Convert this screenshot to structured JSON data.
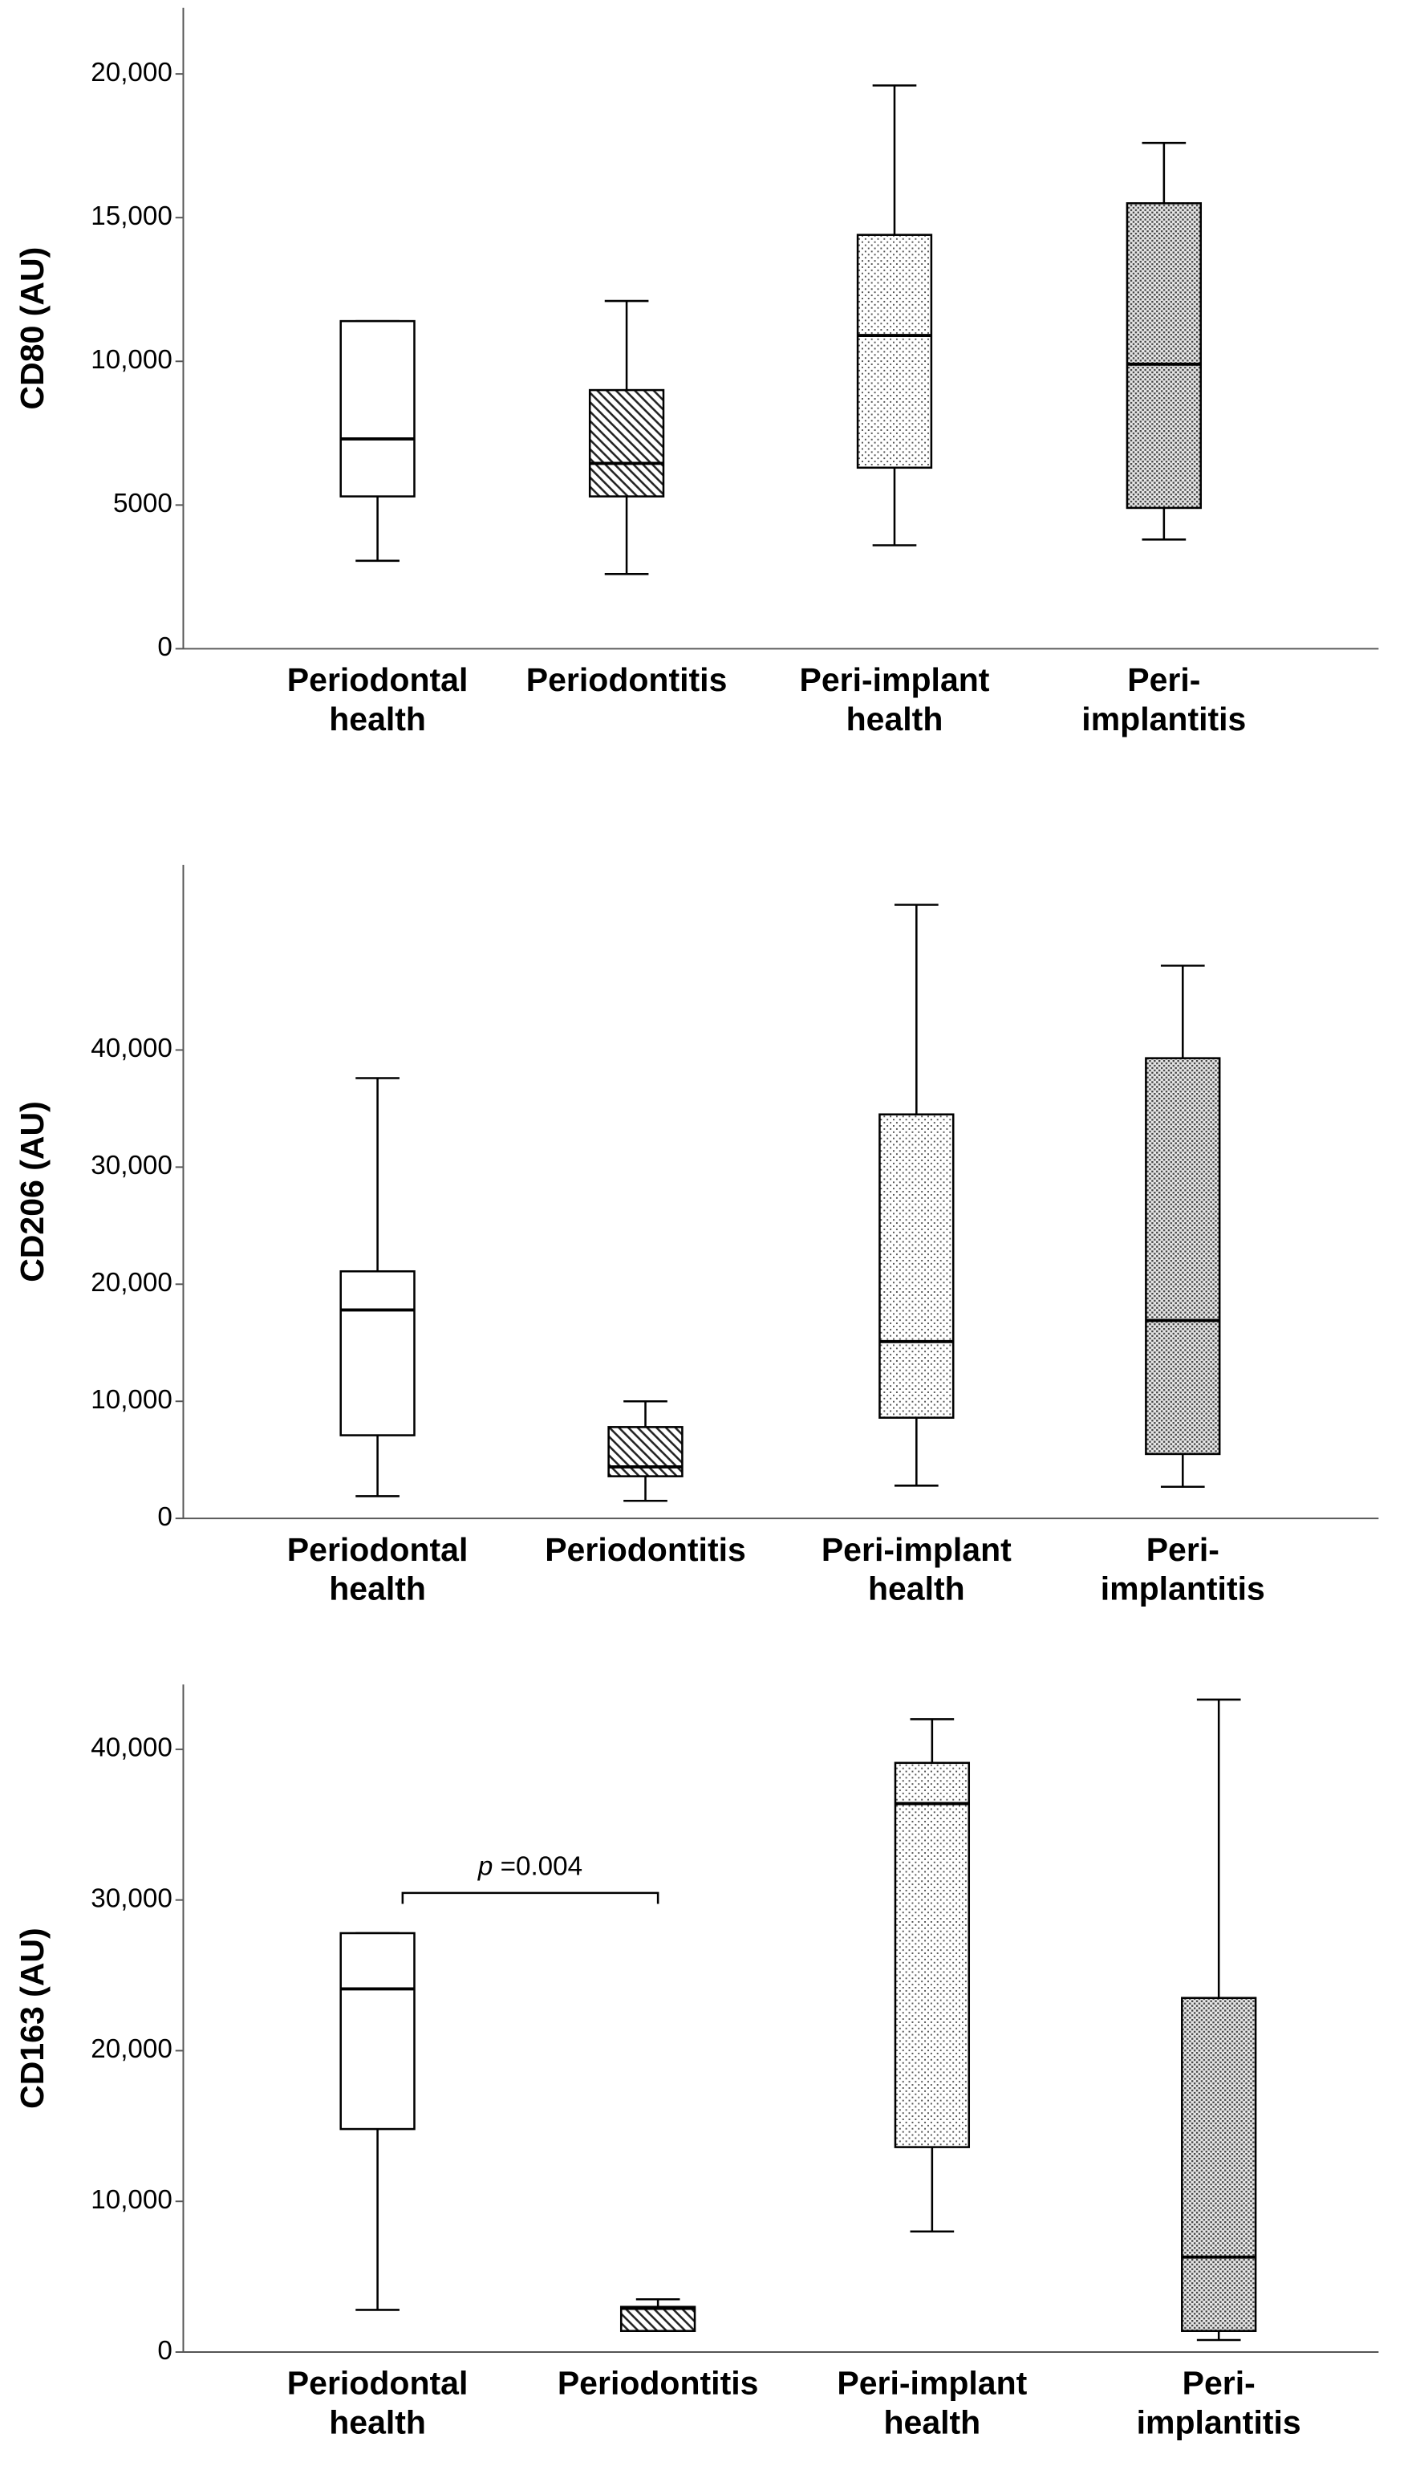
{
  "chart_data": [
    {
      "type": "box",
      "ylabel": "CD80 (AU)",
      "categories": [
        "Periodontal\nhealth",
        "Periodontitis",
        "Peri-implant\nhealth",
        "Peri-\nimplantitis"
      ],
      "patterns": [
        "none",
        "hatch",
        "dots",
        "dense-dots"
      ],
      "whisker_low": [
        3060,
        2600,
        3600,
        3800
      ],
      "q1": [
        5300,
        5300,
        6300,
        4900
      ],
      "median": [
        7300,
        6450,
        10900,
        9900
      ],
      "q3": [
        11400,
        9000,
        14400,
        15500
      ],
      "whisker_high": [
        11400,
        12100,
        19600,
        17600
      ],
      "ylim": [
        0,
        22300
      ],
      "yticks": [
        0,
        5000,
        {
          "value": 10000,
          "label": "10,000"
        },
        {
          "value": 15000,
          "label": "15,000"
        },
        {
          "value": 20000,
          "label": "20,000"
        }
      ]
    },
    {
      "type": "box",
      "ylabel": "CD206 (AU)",
      "categories": [
        "Periodontal\nhealth",
        "Periodontitis",
        "Peri-implant\nhealth",
        "Peri-\nimplantitis"
      ],
      "patterns": [
        "none",
        "hatch",
        "dots",
        "dense-dots"
      ],
      "whisker_low": [
        1900,
        1500,
        2800,
        2700
      ],
      "q1": [
        7100,
        3600,
        8600,
        5500
      ],
      "median": [
        17800,
        4400,
        15100,
        16900
      ],
      "q3": [
        21100,
        7800,
        34500,
        39300
      ],
      "whisker_high": [
        37600,
        10000,
        52400,
        47200
      ],
      "ylim": [
        0,
        55800
      ],
      "yticks": [
        0,
        {
          "value": 10000,
          "label": "10,000"
        },
        {
          "value": 20000,
          "label": "20,000"
        },
        {
          "value": 30000,
          "label": "30,000"
        },
        {
          "value": 40000,
          "label": "40,000"
        }
      ]
    },
    {
      "type": "box",
      "ylabel": "CD163 (AU)",
      "categories": [
        "Periodontal\nhealth",
        "Periodontitis",
        "Peri-implant\nhealth",
        "Peri-\nimplantitis"
      ],
      "patterns": [
        "none",
        "hatch",
        "dots",
        "dense-dots"
      ],
      "whisker_low": [
        2800,
        1400,
        8000,
        800
      ],
      "q1": [
        14800,
        1400,
        13600,
        1400
      ],
      "median": [
        24100,
        2900,
        36400,
        6300
      ],
      "q3": [
        27800,
        3000,
        39100,
        23500
      ],
      "whisker_high": [
        27800,
        3500,
        42000,
        43300
      ],
      "ylim": [
        0,
        44300
      ],
      "yticks": [
        0,
        {
          "value": 10000,
          "label": "10,000"
        },
        {
          "value": 20000,
          "label": "20,000"
        },
        {
          "value": 30000,
          "label": "30,000"
        },
        {
          "value": 40000,
          "label": "40,000"
        }
      ],
      "annotation": {
        "italic": "p",
        "text": " =0.004"
      }
    }
  ]
}
